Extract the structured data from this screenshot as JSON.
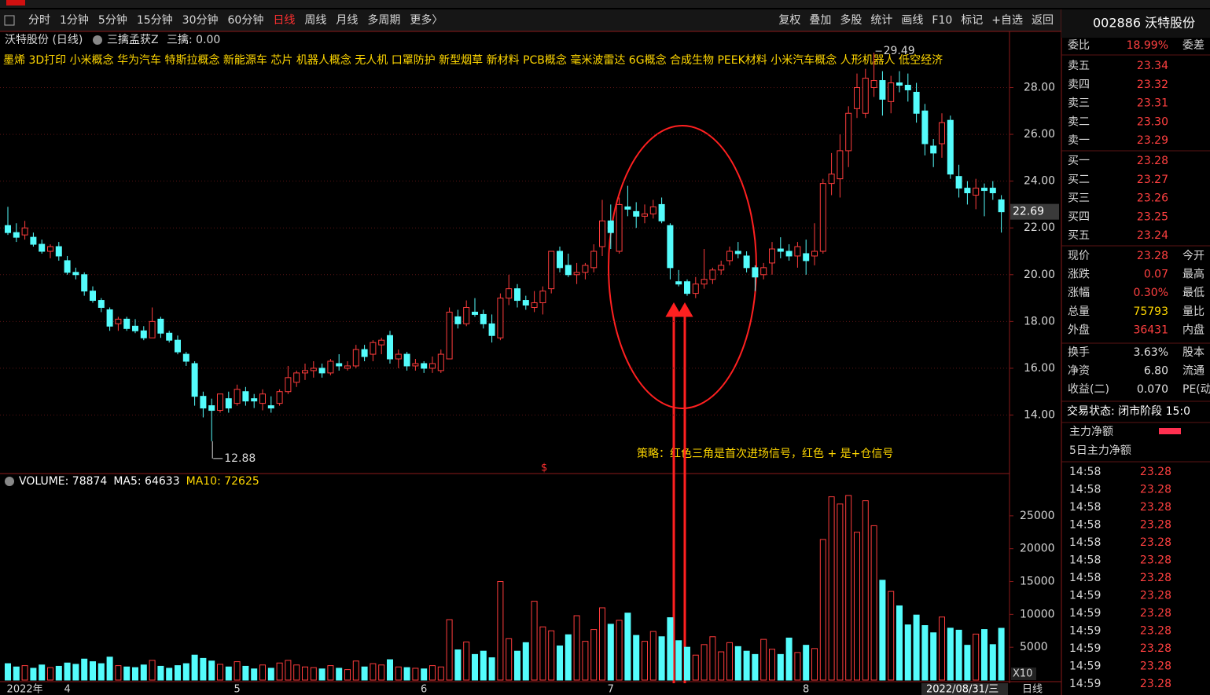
{
  "toolbar": {
    "tabs": [
      "分时",
      "1分钟",
      "5分钟",
      "15分钟",
      "30分钟",
      "60分钟",
      "日线",
      "周线",
      "月线",
      "多周期",
      "更多〉"
    ],
    "active_tab": 6,
    "tools": [
      "复权",
      "叠加",
      "多股",
      "统计",
      "画线",
      "F10",
      "标记",
      "+自选",
      "返回"
    ]
  },
  "chart_header": {
    "stock": "沃特股份 (日线)",
    "indicator": "三擒孟获Z",
    "indicator_value": "三擒: 0.00"
  },
  "concepts": "墨烯 3D打印 小米概念 华为汽车 特斯拉概念 新能源车 芯片 机器人概念 无人机 口罩防护 新型烟草 新材料 PCB概念 毫米波雷达 6G概念 合成生物 PEEK材料 小米汽车概念 人形机器人 低空经济",
  "strategy_note": "策略：红色三角是首次进场信号，红色 + 是+仓信号",
  "signal_mark": "$",
  "volume_header": {
    "volume": "VOLUME: 78874",
    "ma5": "MA5: 64633",
    "ma10": "MA10: 72625"
  },
  "volume_unit": "X10",
  "cursor_date": "2022/08/31/三",
  "period": "日线",
  "chart_data": [
    {
      "type": "candlestick",
      "up_color": "#ff3c3c",
      "down_color": "#54fcfc",
      "grid": true,
      "ylim": [
        11.6,
        30.4
      ],
      "yticks": [
        {
          "value": 14,
          "label": "14.00"
        },
        {
          "value": 16,
          "label": "16.00"
        },
        {
          "value": 18,
          "label": "18.00"
        },
        {
          "value": 20,
          "label": "20.00"
        },
        {
          "value": 22,
          "label": "22.00"
        },
        {
          "value": 24,
          "label": "24.00"
        },
        {
          "value": 26,
          "label": "26.00"
        },
        {
          "value": 28,
          "label": "28.00"
        }
      ],
      "categories": [
        null,
        null,
        "2022年",
        null,
        null,
        null,
        null,
        "4",
        null,
        null,
        null,
        null,
        null,
        null,
        null,
        null,
        null,
        null,
        null,
        null,
        null,
        null,
        null,
        null,
        null,
        null,
        null,
        "5",
        null,
        null,
        null,
        null,
        null,
        null,
        null,
        null,
        null,
        null,
        null,
        null,
        null,
        null,
        null,
        null,
        null,
        null,
        null,
        null,
        null,
        "6",
        null,
        null,
        null,
        null,
        null,
        null,
        null,
        null,
        null,
        null,
        null,
        null,
        null,
        null,
        null,
        null,
        null,
        null,
        null,
        null,
        null,
        "7",
        null,
        null,
        null,
        null,
        null,
        null,
        null,
        null,
        null,
        null,
        null,
        null,
        null,
        null,
        null,
        null,
        null,
        null,
        null,
        null,
        null,
        null,
        "8",
        null,
        null,
        null,
        null,
        null,
        null,
        null,
        null,
        null,
        null,
        null,
        null,
        null,
        null,
        null,
        null,
        null,
        null,
        null,
        null,
        null,
        null,
        null
      ],
      "open": [
        22.1,
        21.8,
        21.7,
        21.6,
        21.3,
        21.0,
        21.2,
        20.6,
        20.1,
        20.0,
        19.3,
        18.9,
        18.5,
        17.9,
        18.1,
        17.8,
        17.6,
        17.3,
        18.1,
        17.5,
        17.2,
        16.6,
        16.2,
        14.8,
        14.4,
        14.2,
        14.7,
        14.5,
        15.0,
        14.7,
        14.5,
        14.4,
        14.5,
        15.0,
        15.4,
        15.8,
        15.9,
        16.0,
        15.8,
        16.2,
        16.0,
        16.1,
        16.8,
        16.6,
        17.0,
        17.4,
        16.4,
        16.6,
        16.1,
        16.2,
        16.0,
        15.9,
        16.4,
        18.2,
        17.9,
        18.4,
        18.3,
        17.9,
        17.3,
        19.0,
        19.4,
        18.9,
        18.6,
        18.8,
        19.4,
        21.0,
        20.4,
        20.0,
        20.1,
        20.3,
        21.2,
        22.3,
        21.0,
        22.9,
        22.7,
        22.5,
        22.6,
        23.0,
        22.1,
        19.7,
        19.7,
        19.2,
        19.6,
        19.8,
        20.2,
        20.6,
        21.0,
        20.8,
        20.3,
        20.0,
        20.5,
        21.1,
        21.0,
        20.8,
        20.9,
        20.8,
        21.0,
        23.9,
        24.1,
        25.3,
        27.1,
        26.9,
        28.0,
        28.3,
        27.4,
        28.2,
        28.1,
        27.8,
        27.0,
        25.5,
        25.6,
        26.6,
        24.2,
        23.7,
        23.4,
        23.7,
        23.7,
        23.2
      ],
      "high": [
        22.9,
        22.2,
        22.3,
        21.8,
        21.5,
        21.3,
        21.4,
        20.8,
        20.3,
        20.1,
        19.5,
        19.0,
        18.6,
        18.2,
        18.2,
        18.1,
        17.8,
        18.6,
        18.2,
        17.6,
        17.4,
        16.7,
        16.3,
        15.0,
        14.7,
        14.9,
        15.0,
        15.3,
        15.2,
        14.9,
        15.1,
        14.8,
        15.1,
        16.1,
        15.9,
        16.2,
        16.3,
        16.2,
        16.4,
        16.6,
        16.3,
        17.0,
        17.0,
        17.2,
        17.3,
        17.6,
        16.8,
        16.7,
        16.4,
        16.3,
        16.5,
        16.8,
        18.6,
        18.5,
        18.9,
        19.0,
        18.5,
        18.3,
        19.2,
        20.0,
        19.6,
        19.1,
        19.3,
        19.5,
        21.0,
        21.2,
        20.9,
        20.5,
        20.5,
        21.3,
        23.2,
        23.0,
        23.3,
        23.8,
        23.1,
        23.0,
        23.2,
        23.3,
        22.2,
        20.2,
        19.8,
        19.9,
        21.1,
        20.3,
        20.6,
        21.2,
        21.4,
        21.0,
        20.4,
        20.5,
        21.4,
        21.6,
        21.3,
        21.4,
        21.5,
        22.2,
        24.1,
        25.2,
        26.0,
        27.2,
        28.6,
        28.8,
        29.49,
        28.7,
        28.5,
        28.7,
        28.6,
        28.2,
        27.3,
        25.8,
        26.9,
        26.8,
        24.7,
        24.0,
        24.1,
        23.9,
        24.0,
        23.4
      ],
      "low": [
        21.7,
        21.4,
        21.5,
        21.2,
        20.9,
        20.7,
        20.6,
        20.0,
        19.8,
        19.1,
        18.8,
        18.4,
        17.6,
        17.6,
        17.6,
        17.5,
        17.2,
        17.3,
        17.3,
        17.1,
        16.6,
        16.1,
        14.4,
        13.9,
        12.88,
        14.1,
        14.1,
        14.4,
        14.4,
        14.3,
        14.2,
        14.1,
        14.4,
        14.9,
        15.2,
        15.5,
        15.6,
        15.6,
        15.7,
        15.9,
        15.9,
        16.0,
        16.3,
        16.3,
        16.6,
        16.2,
        16.0,
        15.9,
        15.9,
        15.8,
        15.8,
        15.8,
        16.4,
        17.7,
        17.8,
        18.2,
        17.7,
        17.1,
        17.2,
        18.7,
        18.6,
        18.5,
        18.4,
        18.3,
        19.2,
        20.1,
        19.9,
        19.6,
        19.8,
        20.1,
        20.8,
        21.1,
        20.9,
        22.5,
        22.0,
        22.2,
        22.4,
        22.2,
        19.8,
        19.5,
        19.1,
        19.0,
        19.4,
        19.6,
        20.0,
        20.4,
        20.7,
        20.1,
        19.3,
        19.8,
        20.0,
        20.7,
        20.6,
        20.3,
        20.0,
        20.4,
        20.9,
        23.4,
        23.3,
        24.6,
        26.7,
        26.7,
        27.6,
        26.8,
        26.9,
        27.8,
        27.4,
        26.5,
        25.1,
        24.6,
        25.0,
        24.1,
        23.3,
        23.0,
        22.8,
        22.5,
        23.2,
        21.8
      ],
      "close": [
        21.8,
        21.6,
        22.0,
        21.3,
        21.0,
        21.2,
        20.8,
        20.1,
        20.0,
        19.3,
        18.9,
        18.6,
        17.8,
        18.1,
        17.7,
        17.6,
        17.3,
        18.0,
        17.5,
        17.2,
        16.7,
        16.3,
        14.8,
        14.3,
        14.2,
        14.9,
        14.3,
        15.1,
        14.6,
        14.6,
        14.9,
        14.3,
        15.0,
        15.6,
        15.8,
        15.9,
        16.0,
        15.8,
        16.3,
        16.1,
        16.1,
        16.8,
        16.5,
        17.1,
        17.2,
        16.4,
        16.6,
        16.1,
        16.2,
        16.0,
        16.2,
        16.6,
        18.4,
        17.9,
        18.6,
        18.3,
        17.9,
        17.4,
        19.0,
        19.4,
        18.9,
        18.7,
        18.8,
        19.3,
        21.0,
        20.3,
        20.0,
        20.1,
        20.4,
        21.0,
        22.3,
        21.8,
        23.0,
        22.8,
        22.5,
        22.6,
        22.9,
        22.3,
        20.3,
        19.6,
        19.2,
        19.6,
        19.8,
        20.2,
        20.4,
        21.0,
        20.9,
        20.3,
        19.9,
        20.3,
        21.1,
        21.0,
        20.8,
        21.2,
        20.6,
        21.0,
        23.9,
        24.3,
        25.3,
        26.9,
        28.0,
        28.4,
        28.3,
        27.5,
        28.2,
        28.1,
        27.9,
        26.9,
        25.6,
        25.2,
        26.5,
        24.3,
        23.7,
        23.5,
        23.7,
        23.6,
        23.5,
        22.69
      ]
    },
    {
      "type": "bar",
      "grid": false,
      "ylim": [
        0,
        31200
      ],
      "yticks": [
        5000,
        10000,
        15000,
        20000,
        25000
      ],
      "values": [
        2500,
        2000,
        2200,
        1800,
        2300,
        1900,
        2100,
        2600,
        2400,
        3200,
        2800,
        2500,
        3500,
        2200,
        2000,
        1900,
        2300,
        3000,
        2100,
        1800,
        2200,
        2500,
        3800,
        3300,
        2900,
        2400,
        2000,
        2800,
        2100,
        1700,
        2300,
        1800,
        2600,
        3000,
        2300,
        2000,
        1900,
        1700,
        2200,
        1800,
        1600,
        2900,
        2000,
        2500,
        2300,
        3100,
        2000,
        1900,
        1800,
        1700,
        2200,
        2000,
        9200,
        4600,
        5800,
        3900,
        4400,
        3400,
        15000,
        6300,
        4400,
        5700,
        12000,
        8100,
        7500,
        5200,
        6900,
        9800,
        5900,
        7700,
        11000,
        8500,
        9100,
        10200,
        6800,
        5900,
        7400,
        6600,
        9500,
        6000,
        5000,
        3800,
        5400,
        6600,
        4300,
        5700,
        5100,
        4400,
        3900,
        6200,
        4700,
        3900,
        6400,
        4200,
        5300,
        4800,
        21400,
        27900,
        26800,
        28100,
        22500,
        27300,
        23500,
        15200,
        13500,
        11300,
        8400,
        9900,
        8300,
        7200,
        9600,
        7900,
        7600,
        5300,
        7000,
        7700,
        5400,
        7887
      ]
    }
  ],
  "quote": {
    "title": "002886 沃特股份",
    "committee": {
      "label": "委比",
      "value": "18.99%",
      "label2": "委差"
    },
    "asks": [
      {
        "label": "卖五",
        "price": "23.34"
      },
      {
        "label": "卖四",
        "price": "23.32"
      },
      {
        "label": "卖三",
        "price": "23.31"
      },
      {
        "label": "卖二",
        "price": "23.30"
      },
      {
        "label": "卖一",
        "price": "23.29"
      }
    ],
    "bids": [
      {
        "label": "买一",
        "price": "23.28"
      },
      {
        "label": "买二",
        "price": "23.27"
      },
      {
        "label": "买三",
        "price": "23.26"
      },
      {
        "label": "买四",
        "price": "23.25"
      },
      {
        "label": "买五",
        "price": "23.24"
      }
    ],
    "stats": [
      {
        "label": "现价",
        "value": "23.28",
        "label2": "今开",
        "color": "#ff4040"
      },
      {
        "label": "涨跌",
        "value": "0.07",
        "label2": "最高",
        "color": "#ff4040"
      },
      {
        "label": "涨幅",
        "value": "0.30%",
        "label2": "最低",
        "color": "#ff4040"
      },
      {
        "label": "总量",
        "value": "75793",
        "label2": "量比",
        "color": "#ffd700"
      },
      {
        "label": "外盘",
        "value": "36431",
        "label2": "内盘",
        "color": "#ff4040"
      },
      {
        "label": "换手",
        "value": "3.63%",
        "label2": "股本",
        "color": "#e0e0e0"
      },
      {
        "label": "净资",
        "value": "6.80",
        "label2": "流通",
        "color": "#e0e0e0"
      },
      {
        "label": "收益(二)",
        "value": "0.070",
        "label2": "PE(动",
        "color": "#e0e0e0"
      }
    ],
    "status": "交易状态: 闭市阶段 15:0",
    "flows": [
      "主力净额",
      "5日主力净额"
    ],
    "trades": [
      {
        "time": "14:58",
        "price": "23.28"
      },
      {
        "time": "14:58",
        "price": "23.28"
      },
      {
        "time": "14:58",
        "price": "23.28"
      },
      {
        "time": "14:58",
        "price": "23.28"
      },
      {
        "time": "14:58",
        "price": "23.28"
      },
      {
        "time": "14:58",
        "price": "23.28"
      },
      {
        "time": "14:58",
        "price": "23.28"
      },
      {
        "time": "14:59",
        "price": "23.28"
      },
      {
        "time": "14:59",
        "price": "23.28"
      },
      {
        "time": "14:59",
        "price": "23.28"
      },
      {
        "time": "14:59",
        "price": "23.28"
      },
      {
        "time": "14:59",
        "price": "23.28"
      },
      {
        "time": "14:59",
        "price": "23.28"
      }
    ]
  }
}
